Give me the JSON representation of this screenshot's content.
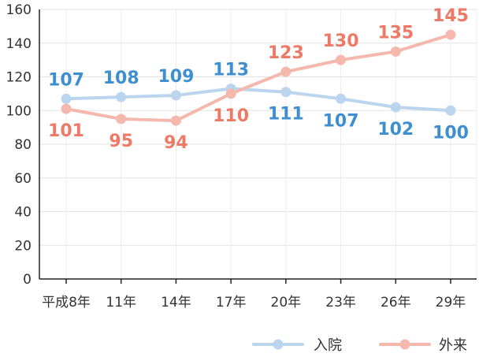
{
  "chart_data": {
    "type": "line",
    "title": "",
    "xlabel": "",
    "ylabel": "",
    "categories": [
      "平成8年",
      "11年",
      "14年",
      "17年",
      "20年",
      "23年",
      "26年",
      "29年"
    ],
    "ylim": [
      0,
      160
    ],
    "yticks": [
      "0",
      "20",
      "40",
      "60",
      "80",
      "100",
      "120",
      "140",
      "160"
    ],
    "grid": true,
    "legend_position": "bottom-right",
    "series": [
      {
        "name": "入院",
        "values": [
          107,
          108,
          109,
          113,
          111,
          107,
          102,
          100
        ],
        "labels": [
          "107",
          "108",
          "109",
          "113",
          "111",
          "107",
          "102",
          "100"
        ],
        "line_color": "#bcd5ee",
        "label_color": "#3f8fd0"
      },
      {
        "name": "外来",
        "values": [
          101,
          95,
          94,
          110,
          123,
          130,
          135,
          145
        ],
        "labels": [
          "101",
          "95",
          "94",
          "110",
          "123",
          "130",
          "135",
          "145"
        ],
        "line_color": "#f4b8ad",
        "label_color": "#ec7a66"
      }
    ]
  }
}
